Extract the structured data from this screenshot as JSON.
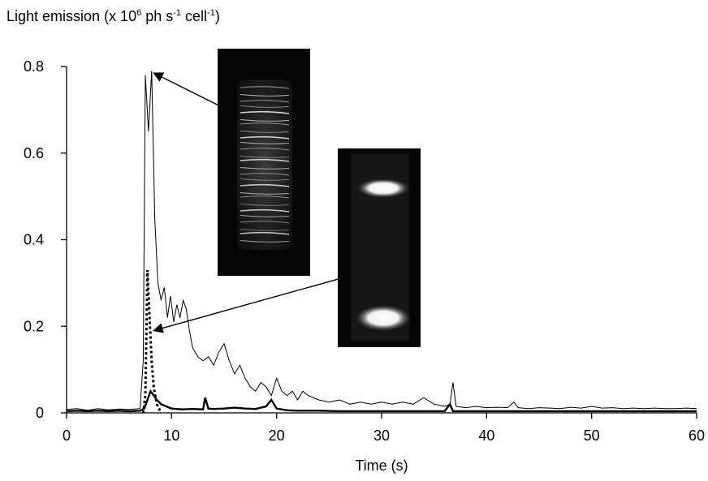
{
  "chart_data": {
    "type": "line",
    "ylabel": {
      "prefix": "Light emission (x  10",
      "exp1": "6",
      "mid": " ph s",
      "exp2": "-1",
      "mid2": " cell",
      "exp3": "-1",
      "suffix": ")"
    },
    "xlabel": "Time (s)",
    "xlim": [
      0,
      60
    ],
    "ylim": [
      0,
      0.8
    ],
    "xticks": [
      "0",
      "10",
      "20",
      "30",
      "40",
      "50",
      "60"
    ],
    "yticks": [
      "0",
      "0.2",
      "0.4",
      "0.6",
      "0.8"
    ],
    "grid": false,
    "legend": "none",
    "series": [
      {
        "style": "solid-thin",
        "points": [
          [
            0,
            0.008
          ],
          [
            1,
            0.01
          ],
          [
            2,
            0.006
          ],
          [
            3,
            0.01
          ],
          [
            4,
            0.007
          ],
          [
            5,
            0.009
          ],
          [
            6,
            0.008
          ],
          [
            7,
            0.01
          ],
          [
            7.3,
            0.12
          ],
          [
            7.5,
            0.78
          ],
          [
            7.8,
            0.65
          ],
          [
            8.1,
            0.79
          ],
          [
            8.4,
            0.45
          ],
          [
            8.7,
            0.3
          ],
          [
            9,
            0.26
          ],
          [
            9.3,
            0.29
          ],
          [
            9.6,
            0.22
          ],
          [
            9.9,
            0.27
          ],
          [
            10.2,
            0.21
          ],
          [
            10.5,
            0.25
          ],
          [
            10.8,
            0.22
          ],
          [
            11.1,
            0.26
          ],
          [
            11.4,
            0.24
          ],
          [
            11.7,
            0.19
          ],
          [
            12,
            0.15
          ],
          [
            12.5,
            0.13
          ],
          [
            13,
            0.12
          ],
          [
            13.5,
            0.13
          ],
          [
            14,
            0.11
          ],
          [
            14.5,
            0.14
          ],
          [
            15,
            0.16
          ],
          [
            15.5,
            0.12
          ],
          [
            16,
            0.09
          ],
          [
            16.5,
            0.11
          ],
          [
            17,
            0.08
          ],
          [
            17.5,
            0.06
          ],
          [
            18,
            0.05
          ],
          [
            18.5,
            0.07
          ],
          [
            19,
            0.06
          ],
          [
            19.5,
            0.04
          ],
          [
            20,
            0.08
          ],
          [
            20.5,
            0.05
          ],
          [
            21,
            0.04
          ],
          [
            21.5,
            0.05
          ],
          [
            22,
            0.03
          ],
          [
            22.5,
            0.05
          ],
          [
            23,
            0.04
          ],
          [
            24,
            0.03
          ],
          [
            25,
            0.025
          ],
          [
            26,
            0.03
          ],
          [
            27,
            0.02
          ],
          [
            28,
            0.025
          ],
          [
            29,
            0.02
          ],
          [
            30,
            0.025
          ],
          [
            31,
            0.02
          ],
          [
            32,
            0.025
          ],
          [
            33,
            0.02
          ],
          [
            34,
            0.035
          ],
          [
            35,
            0.02
          ],
          [
            36,
            0.015
          ],
          [
            36.5,
            0.02
          ],
          [
            36.8,
            0.07
          ],
          [
            37.1,
            0.015
          ],
          [
            38,
            0.012
          ],
          [
            39,
            0.015
          ],
          [
            40,
            0.012
          ],
          [
            41,
            0.013
          ],
          [
            42,
            0.012
          ],
          [
            42.6,
            0.025
          ],
          [
            43,
            0.012
          ],
          [
            44,
            0.01
          ],
          [
            45,
            0.012
          ],
          [
            46,
            0.011
          ],
          [
            47,
            0.01
          ],
          [
            48,
            0.013
          ],
          [
            49,
            0.011
          ],
          [
            50,
            0.015
          ],
          [
            51,
            0.011
          ],
          [
            52,
            0.012
          ],
          [
            53,
            0.01
          ],
          [
            54,
            0.011
          ],
          [
            55,
            0.01
          ],
          [
            56,
            0.011
          ],
          [
            57,
            0.01
          ],
          [
            58,
            0.01
          ],
          [
            59,
            0.011
          ],
          [
            60,
            0.01
          ]
        ]
      },
      {
        "style": "solid-bold",
        "points": [
          [
            0,
            0.004
          ],
          [
            1,
            0.005
          ],
          [
            2,
            0.004
          ],
          [
            3,
            0.005
          ],
          [
            4,
            0.004
          ],
          [
            5,
            0.005
          ],
          [
            6,
            0.004
          ],
          [
            7,
            0.005
          ],
          [
            7.4,
            0.01
          ],
          [
            7.7,
            0.03
          ],
          [
            8,
            0.05
          ],
          [
            8.3,
            0.04
          ],
          [
            8.6,
            0.03
          ],
          [
            9,
            0.02
          ],
          [
            9.5,
            0.015
          ],
          [
            10,
            0.01
          ],
          [
            11,
            0.008
          ],
          [
            12,
            0.009
          ],
          [
            13,
            0.008
          ],
          [
            13.2,
            0.035
          ],
          [
            13.5,
            0.01
          ],
          [
            14,
            0.009
          ],
          [
            15,
            0.01
          ],
          [
            16,
            0.012
          ],
          [
            17,
            0.01
          ],
          [
            18,
            0.009
          ],
          [
            19,
            0.015
          ],
          [
            19.5,
            0.03
          ],
          [
            20,
            0.01
          ],
          [
            21,
            0.006
          ],
          [
            22,
            0.005
          ],
          [
            24,
            0.005
          ],
          [
            26,
            0.004
          ],
          [
            28,
            0.004
          ],
          [
            30,
            0.004
          ],
          [
            32,
            0.004
          ],
          [
            34,
            0.004
          ],
          [
            36,
            0.004
          ],
          [
            36.5,
            0.02
          ],
          [
            36.8,
            0.004
          ],
          [
            38,
            0.004
          ],
          [
            40,
            0.004
          ],
          [
            42,
            0.004
          ],
          [
            44,
            0.004
          ],
          [
            46,
            0.004
          ],
          [
            48,
            0.004
          ],
          [
            50,
            0.004
          ],
          [
            52,
            0.004
          ],
          [
            54,
            0.004
          ],
          [
            56,
            0.004
          ],
          [
            58,
            0.004
          ],
          [
            60,
            0.004
          ]
        ]
      },
      {
        "style": "dotted-bold",
        "points": [
          [
            7.3,
            0.0
          ],
          [
            7.5,
            0.04
          ],
          [
            7.7,
            0.33
          ],
          [
            7.9,
            0.22
          ],
          [
            8.1,
            0.12
          ],
          [
            8.3,
            0.06
          ],
          [
            8.6,
            0.02
          ],
          [
            9,
            0.0
          ]
        ]
      }
    ],
    "annotations": [
      {
        "type": "arrow",
        "from": [
          14.5,
          0.71
        ],
        "to": [
          8.3,
          0.785
        ]
      },
      {
        "type": "arrow",
        "from": [
          26,
          0.31
        ],
        "to": [
          8.3,
          0.19
        ]
      }
    ],
    "inset_images": [
      {
        "name": "inset-image-upper",
        "content": "uniform-striations"
      },
      {
        "name": "inset-image-lower",
        "content": "two-end-bands"
      }
    ]
  }
}
